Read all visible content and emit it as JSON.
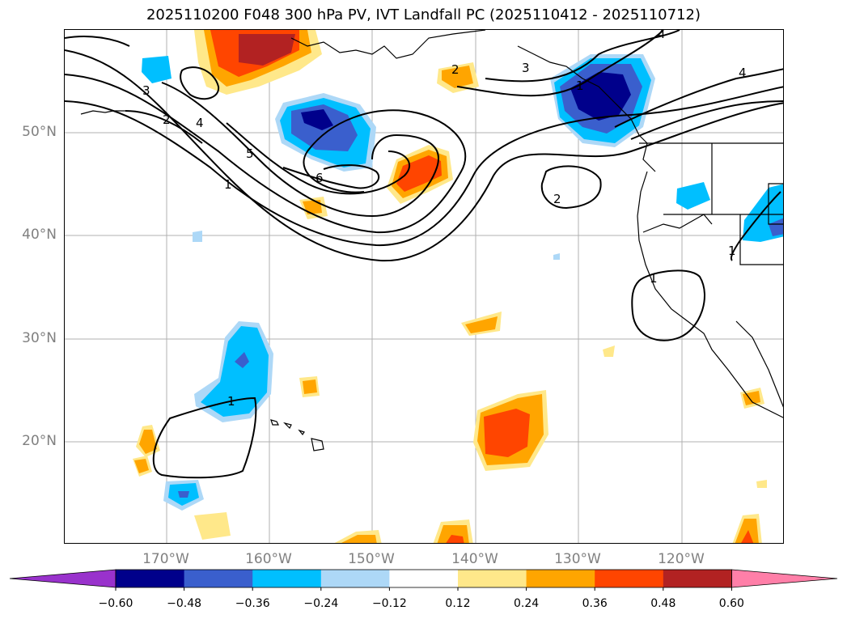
{
  "title": "2025110200 F048 300 hPa PV, IVT Landfall PC (2025110412 - 2025110712)",
  "axes": {
    "lat_labels": [
      "50°N",
      "40°N",
      "30°N",
      "20°N"
    ],
    "lon_labels": [
      "170°W",
      "160°W",
      "150°W",
      "140°W",
      "130°W",
      "120°W"
    ]
  },
  "colorbar": {
    "ticks": [
      "−0.60",
      "−0.48",
      "−0.36",
      "−0.24",
      "−0.12",
      "0.12",
      "0.24",
      "0.36",
      "0.48",
      "0.60"
    ],
    "colors": [
      "#9932cc",
      "#00008b",
      "#3a5fcd",
      "#00bfff",
      "#add8f7",
      "#ffffff",
      "#ffe88a",
      "#ffa500",
      "#ff4500",
      "#b22222",
      "#ff7fa8"
    ]
  },
  "contour_labels": [
    "4",
    "4",
    "2",
    "3",
    "3",
    "2",
    "4",
    "5",
    "6",
    "1",
    "2",
    "1",
    "1",
    "1",
    "1"
  ],
  "colors": {
    "contour": "#000000",
    "grid": "#b0b0b0",
    "axis_label": "#808080"
  }
}
